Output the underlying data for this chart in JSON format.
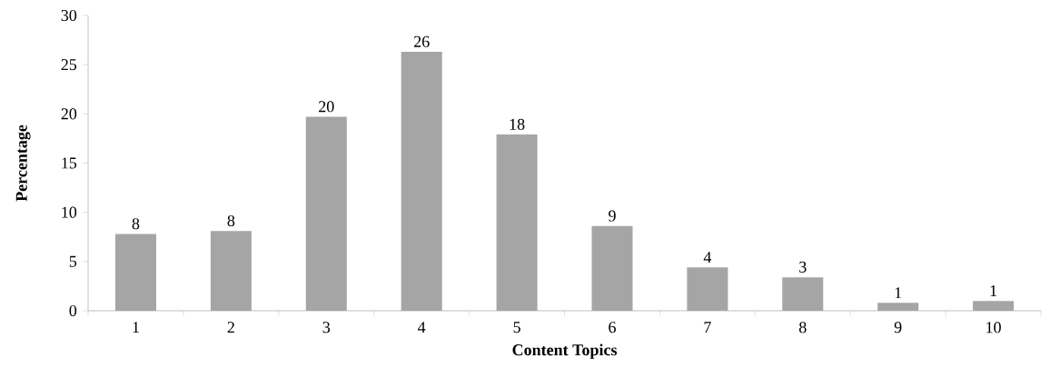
{
  "chart_data": {
    "type": "bar",
    "xlabel": "Content Topics",
    "ylabel": "Percentage",
    "categories": [
      "1",
      "2",
      "3",
      "4",
      "5",
      "6",
      "7",
      "8",
      "9",
      "10"
    ],
    "values": [
      7.8,
      8.1,
      19.7,
      26.3,
      17.9,
      8.6,
      4.4,
      3.4,
      0.8,
      1.0
    ],
    "value_labels": [
      "8",
      "8",
      "20",
      "26",
      "18",
      "9",
      "4",
      "3",
      "1",
      "1"
    ],
    "color": "#a5a5a5",
    "ylim": [
      0,
      30
    ],
    "yticks": [
      0,
      5,
      10,
      15,
      20,
      25,
      30
    ],
    "grid": false
  }
}
